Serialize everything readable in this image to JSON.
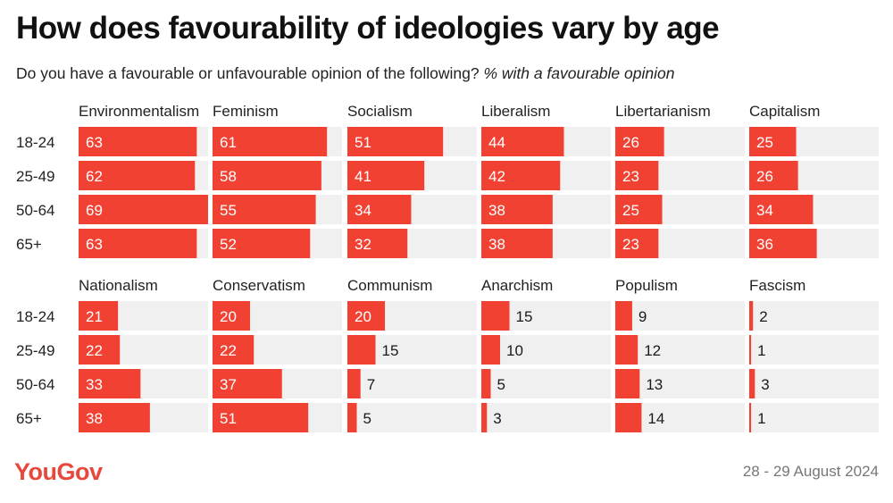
{
  "title": "How does favourability of ideologies vary by age",
  "subtitle": "Do you have a favourable or unfavourable opinion of the following?",
  "subtitle_unit": "% with a favourable opinion",
  "logo": "YouGov",
  "date": "28 - 29 August 2024",
  "colors": {
    "bar": "#f04133",
    "track": "#f0f0f0",
    "label_inside": "#ffffff",
    "label_outside": "#1a1a1a"
  },
  "chart_data": {
    "type": "bar",
    "orientation": "horizontal",
    "categories": [
      "18-24",
      "25-49",
      "50-64",
      "65+"
    ],
    "xlim": [
      0,
      69
    ],
    "panels": [
      {
        "name": "Environmentalism",
        "values": [
          63,
          62,
          69,
          63
        ]
      },
      {
        "name": "Feminism",
        "values": [
          61,
          58,
          55,
          52
        ]
      },
      {
        "name": "Socialism",
        "values": [
          51,
          41,
          34,
          32
        ]
      },
      {
        "name": "Liberalism",
        "values": [
          44,
          42,
          38,
          38
        ]
      },
      {
        "name": "Libertarianism",
        "values": [
          26,
          23,
          25,
          23
        ]
      },
      {
        "name": "Capitalism",
        "values": [
          25,
          26,
          34,
          36
        ]
      },
      {
        "name": "Nationalism",
        "values": [
          21,
          22,
          33,
          38
        ]
      },
      {
        "name": "Conservatism",
        "values": [
          20,
          22,
          37,
          51
        ]
      },
      {
        "name": "Communism",
        "values": [
          20,
          15,
          7,
          5
        ]
      },
      {
        "name": "Anarchism",
        "values": [
          15,
          10,
          5,
          3
        ]
      },
      {
        "name": "Populism",
        "values": [
          9,
          12,
          13,
          14
        ]
      },
      {
        "name": "Fascism",
        "values": [
          2,
          1,
          3,
          1
        ]
      }
    ]
  }
}
